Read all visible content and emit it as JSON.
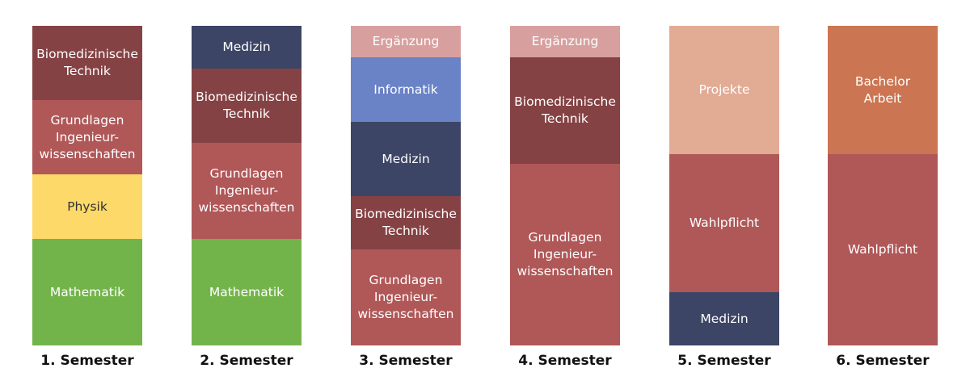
{
  "semesters": [
    {
      "label": "1. Semester",
      "blocks": [
        {
          "text": "Biomedizinische\nTechnik",
          "share": 92,
          "color": "#854244",
          "text_color": "#ffffff"
        },
        {
          "text": "Grundlagen\nIngenieur-\nwissenschaften",
          "share": 92,
          "color": "#b05758",
          "text_color": "#ffffff"
        },
        {
          "text": "Physik",
          "share": 80,
          "color": "#fdd969",
          "text_color": "#333333"
        },
        {
          "text": "Mathematik",
          "share": 132,
          "color": "#73b44a",
          "text_color": "#ffffff"
        }
      ]
    },
    {
      "label": "2. Semester",
      "blocks": [
        {
          "text": "Medizin",
          "share": 53,
          "color": "#3c4565",
          "text_color": "#ffffff"
        },
        {
          "text": "Biomedizinische\nTechnik",
          "share": 92,
          "color": "#854244",
          "text_color": "#ffffff"
        },
        {
          "text": "Grundlagen\nIngenieur-\nwissenschaften",
          "share": 119,
          "color": "#b05758",
          "text_color": "#ffffff"
        },
        {
          "text": "Mathematik",
          "share": 132,
          "color": "#73b44a",
          "text_color": "#ffffff"
        }
      ]
    },
    {
      "label": "3. Semester",
      "blocks": [
        {
          "text": "Ergänzung",
          "share": 39,
          "color": "#d7a09f",
          "text_color": "#ffffff"
        },
        {
          "text": "Informatik",
          "share": 80,
          "color": "#6a82c6",
          "text_color": "#ffffff"
        },
        {
          "text": "Medizin",
          "share": 92,
          "color": "#3c4565",
          "text_color": "#ffffff"
        },
        {
          "text": "Biomedizinische\nTechnik",
          "share": 66,
          "color": "#854244",
          "text_color": "#ffffff"
        },
        {
          "text": "Grundlagen\nIngenieur-\nwissenschaften",
          "share": 119,
          "color": "#b05758",
          "text_color": "#ffffff"
        }
      ]
    },
    {
      "label": "4. Semester",
      "blocks": [
        {
          "text": "Ergänzung",
          "share": 39,
          "color": "#d7a09f",
          "text_color": "#ffffff"
        },
        {
          "text": "Biomedizinische\nTechnik",
          "share": 132,
          "color": "#854244",
          "text_color": "#ffffff"
        },
        {
          "text": "Grundlagen\nIngenieur-\nwissenschaften",
          "share": 225,
          "color": "#b05758",
          "text_color": "#ffffff"
        }
      ]
    },
    {
      "label": "5. Semester",
      "blocks": [
        {
          "text": "Projekte",
          "share": 159,
          "color": "#e2ab94",
          "text_color": "#ffffff"
        },
        {
          "text": "Wahlpflicht",
          "share": 171,
          "color": "#b05758",
          "text_color": "#ffffff"
        },
        {
          "text": "Medizin",
          "share": 66,
          "color": "#3c4565",
          "text_color": "#ffffff"
        }
      ]
    },
    {
      "label": "6. Semester",
      "blocks": [
        {
          "text": "Bachelor\nArbeit",
          "share": 159,
          "color": "#cc7552",
          "text_color": "#ffffff"
        },
        {
          "text": "Wahlpflicht",
          "share": 237,
          "color": "#b05758",
          "text_color": "#ffffff"
        }
      ]
    }
  ]
}
